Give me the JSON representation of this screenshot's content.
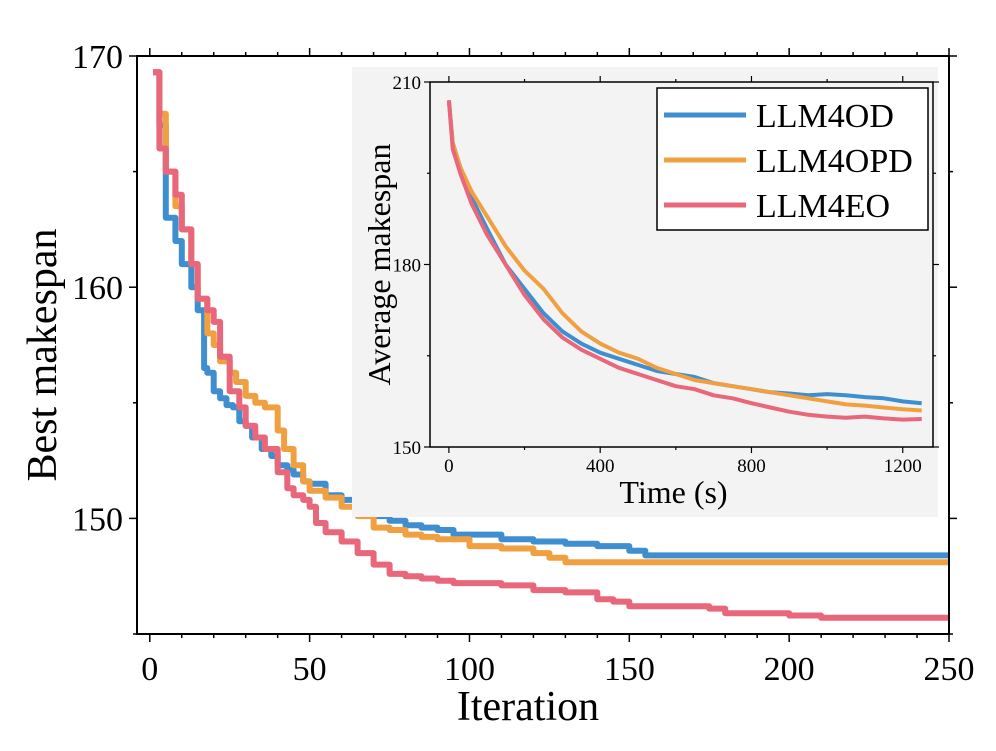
{
  "chart_data": [
    {
      "type": "line",
      "title": "",
      "xlabel": "Iteration",
      "ylabel": "Best makespan",
      "xlim": [
        -4,
        250
      ],
      "ylim": [
        145,
        170
      ],
      "xticks": [
        0,
        50,
        100,
        150,
        200,
        250
      ],
      "yticks": [
        150,
        160,
        170
      ],
      "grid": false,
      "series": [
        {
          "name": "LLM4OD",
          "color": "#3f8fd0",
          "x": [
            1,
            3,
            5,
            8,
            10,
            13,
            15,
            17,
            18,
            20,
            22,
            24,
            26,
            28,
            30,
            32,
            35,
            38,
            40,
            43,
            45,
            48,
            50,
            55,
            60,
            65,
            70,
            75,
            80,
            85,
            90,
            95,
            100,
            110,
            120,
            130,
            140,
            150,
            155,
            160,
            180,
            200,
            220,
            250
          ],
          "y": [
            169.3,
            167,
            163,
            162,
            161,
            160,
            159,
            156.5,
            156.3,
            155.5,
            155.2,
            154.9,
            154.8,
            154.2,
            154.0,
            153.5,
            153.0,
            152.7,
            152.3,
            152.1,
            151.9,
            151.6,
            151.5,
            151.0,
            150.8,
            150.3,
            150.1,
            149.9,
            149.7,
            149.6,
            149.5,
            149.3,
            149.3,
            149.1,
            149.0,
            148.9,
            148.8,
            148.6,
            148.4,
            148.4,
            148.4,
            148.4,
            148.4,
            148.4
          ]
        },
        {
          "name": "LLM4OPD",
          "color": "#f0a040",
          "x": [
            1,
            3,
            5,
            8,
            10,
            13,
            15,
            18,
            20,
            22,
            25,
            27,
            30,
            33,
            36,
            40,
            42,
            45,
            48,
            50,
            55,
            60,
            65,
            70,
            75,
            80,
            85,
            90,
            95,
            100,
            110,
            120,
            125,
            130,
            140,
            150,
            160,
            180,
            200,
            220,
            250
          ],
          "y": [
            169.3,
            167.5,
            165,
            163.5,
            162.5,
            161,
            159.5,
            158,
            157.5,
            156.8,
            156.3,
            155.9,
            155.3,
            155.0,
            154.8,
            153.8,
            153.0,
            152.3,
            151.6,
            151.2,
            150.9,
            150.5,
            150.1,
            149.6,
            149.5,
            149.3,
            149.2,
            149.1,
            149.1,
            148.8,
            148.7,
            148.5,
            148.3,
            148.1,
            148.1,
            148.1,
            148.1,
            148.1,
            148.1,
            148.1,
            148.1
          ]
        },
        {
          "name": "LLM4EO",
          "color": "#e8677a",
          "x": [
            1,
            3,
            5,
            8,
            10,
            13,
            15,
            18,
            20,
            22,
            25,
            28,
            30,
            33,
            36,
            40,
            43,
            45,
            48,
            50,
            52,
            55,
            60,
            65,
            70,
            75,
            80,
            85,
            90,
            95,
            100,
            110,
            120,
            130,
            140,
            145,
            150,
            160,
            170,
            175,
            180,
            190,
            200,
            210,
            250
          ],
          "y": [
            169.3,
            166,
            165,
            164,
            162.5,
            161,
            159.5,
            159,
            158.5,
            157,
            155.5,
            154.8,
            154.0,
            153.5,
            153.0,
            152.0,
            151.3,
            151.0,
            150.8,
            150.5,
            149.8,
            149.4,
            149.0,
            148.5,
            148.0,
            147.6,
            147.5,
            147.4,
            147.3,
            147.2,
            147.2,
            147.1,
            146.9,
            146.8,
            146.5,
            146.4,
            146.2,
            146.2,
            146.2,
            146.1,
            145.9,
            145.9,
            145.8,
            145.7,
            145.7
          ]
        }
      ]
    },
    {
      "type": "line",
      "title": "",
      "xlabel": "Time (s)",
      "ylabel": "Average makespan",
      "xlim": [
        -50,
        1280
      ],
      "ylim": [
        150,
        210
      ],
      "xticks": [
        0,
        400,
        800,
        1200
      ],
      "yticks": [
        150,
        180,
        210
      ],
      "grid": false,
      "legend": "top-right",
      "series": [
        {
          "name": "LLM4OD",
          "color": "#3f8fd0",
          "x": [
            0,
            10,
            30,
            60,
            100,
            150,
            200,
            250,
            300,
            350,
            400,
            450,
            500,
            550,
            600,
            650,
            700,
            750,
            800,
            850,
            900,
            950,
            1000,
            1050,
            1100,
            1150,
            1200,
            1250
          ],
          "y": [
            207,
            200,
            196,
            191,
            186,
            180,
            176,
            172,
            169,
            167,
            165.5,
            164.5,
            163.5,
            162.5,
            162,
            161.5,
            160.5,
            160,
            159.5,
            159,
            158.8,
            158.5,
            158.7,
            158.5,
            158.2,
            158.0,
            157.5,
            157.2
          ]
        },
        {
          "name": "LLM4OPD",
          "color": "#f0a040",
          "x": [
            0,
            10,
            30,
            60,
            100,
            150,
            200,
            250,
            300,
            350,
            400,
            450,
            500,
            550,
            600,
            650,
            700,
            750,
            800,
            850,
            900,
            950,
            1000,
            1050,
            1100,
            1150,
            1200,
            1250
          ],
          "y": [
            207,
            200,
            196,
            192,
            188,
            183,
            179,
            176,
            172,
            169,
            167,
            165.5,
            164.5,
            163,
            162,
            161,
            160.5,
            160,
            159.5,
            159,
            158.5,
            158,
            157.5,
            157,
            156.8,
            156.5,
            156.2,
            156.0
          ]
        },
        {
          "name": "LLM4EO",
          "color": "#e8677a",
          "x": [
            0,
            10,
            30,
            60,
            100,
            150,
            200,
            250,
            300,
            350,
            400,
            450,
            500,
            550,
            600,
            650,
            700,
            750,
            800,
            850,
            900,
            950,
            1000,
            1050,
            1100,
            1150,
            1200,
            1250
          ],
          "y": [
            207,
            199,
            195,
            190,
            185,
            180,
            175,
            171,
            168,
            166,
            164.5,
            163,
            162,
            161,
            160,
            159.5,
            158.5,
            158,
            157.2,
            156.5,
            155.8,
            155.3,
            155.0,
            154.8,
            155.0,
            154.7,
            154.5,
            154.6
          ]
        }
      ]
    }
  ]
}
